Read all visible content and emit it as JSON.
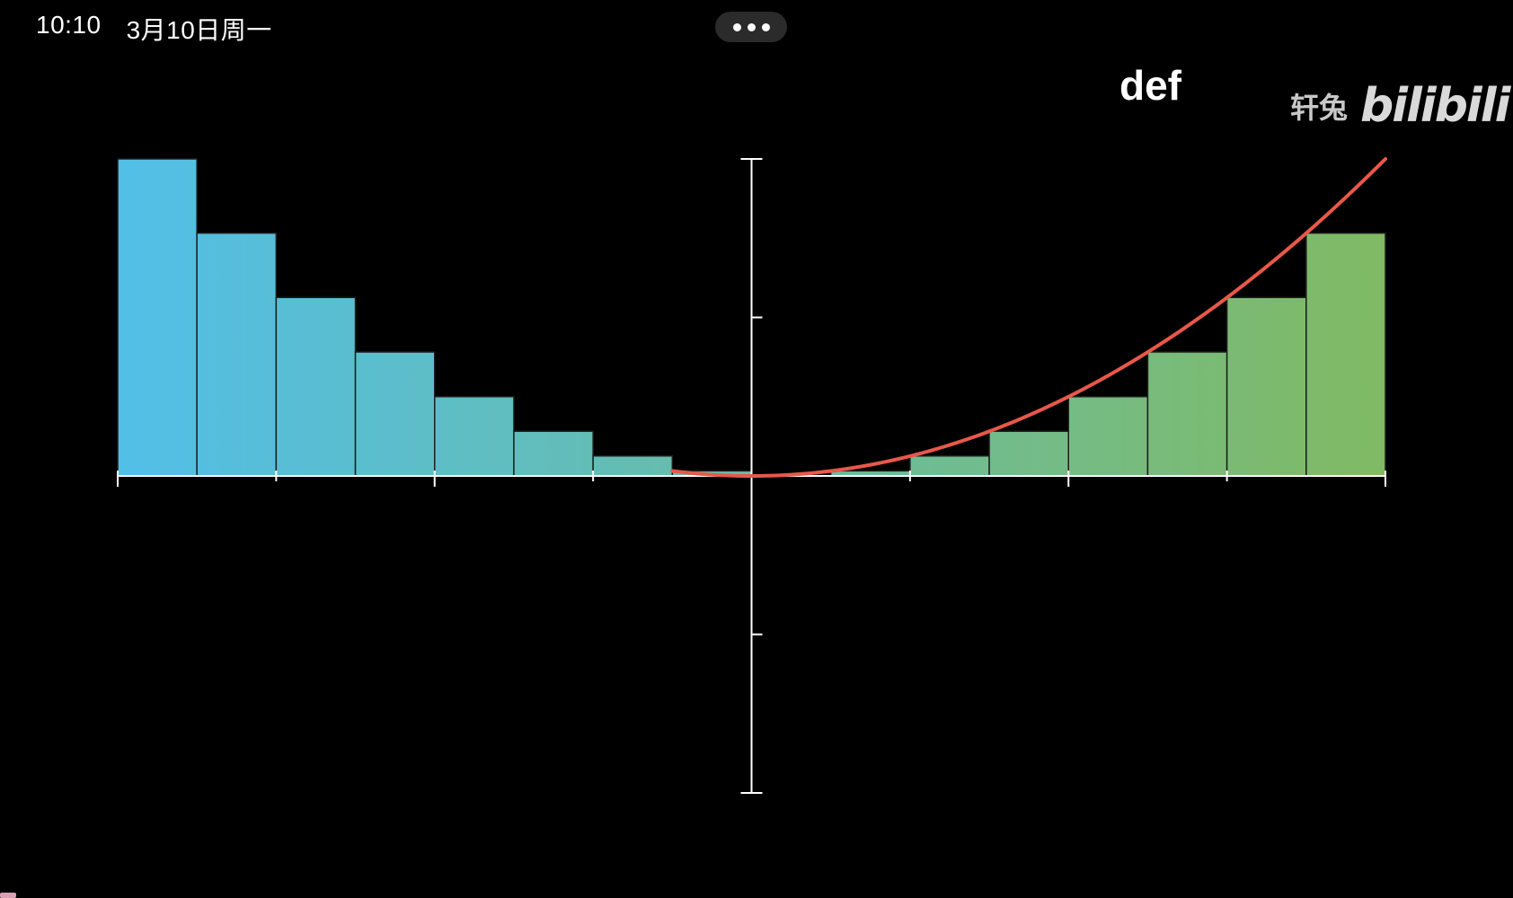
{
  "status_bar": {
    "time": "10:10",
    "date": "3月10日周一"
  },
  "more_menu": {
    "icon": "more-dots-icon"
  },
  "code_label": "def",
  "watermark": {
    "author": "轩兔",
    "brand": "bilibili"
  },
  "chart_data": {
    "type": "bar",
    "title": "",
    "xlabel": "",
    "ylabel": "",
    "xlim": [
      -4,
      4
    ],
    "ylim": [
      -1,
      1
    ],
    "x_ticks": [
      -4,
      -3,
      -2,
      -1,
      0,
      1,
      2,
      3,
      4
    ],
    "y_ticks": [
      -1,
      -0.5,
      0,
      0.5,
      1
    ],
    "grid": false,
    "legend": "none",
    "bar_width": 0.5,
    "series": [
      {
        "kind": "bars",
        "x_left": [
          -4,
          -3.5,
          -3,
          -2.5,
          -2,
          -1.5,
          -1,
          -0.5,
          0,
          0.5,
          1,
          1.5,
          2,
          2.5,
          3,
          3.5
        ],
        "values": [
          1.0,
          0.766,
          0.563,
          0.391,
          0.25,
          0.141,
          0.063,
          0.016,
          0.0,
          0.016,
          0.063,
          0.141,
          0.25,
          0.391,
          0.563,
          0.766
        ],
        "color_start": "#52bfe8",
        "color_end": "#80ba63"
      },
      {
        "kind": "curve",
        "function": "y = x^2 / 16",
        "x_range": [
          -0.5,
          4
        ],
        "color": "#e8584a"
      }
    ]
  },
  "colors": {
    "background": "#000000",
    "axis": "#ffffff",
    "bar_edge": "#1e1e1e"
  }
}
